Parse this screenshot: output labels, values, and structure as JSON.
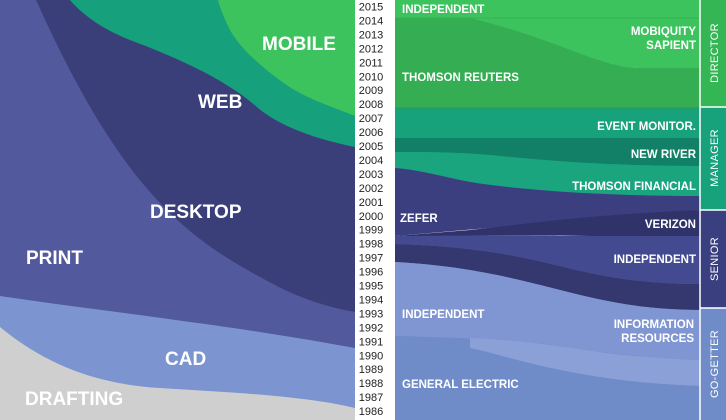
{
  "colors": {
    "mobile": "#3dc35d",
    "web": "#16a07c",
    "desktop": "#3a3f7a",
    "print": "#52599d",
    "cad": "#7c95d0",
    "drafting": "#cfcfcf",
    "director": "#35b655",
    "manager": "#17a27c",
    "senior": "#3a3f80",
    "go_getter": "#6f8bc8"
  },
  "disciplines": {
    "mobile": "MOBILE",
    "web": "WEB",
    "desktop": "DESKTOP",
    "print": "PRINT",
    "cad": "CAD",
    "drafting": "DRAFTING"
  },
  "years": [
    "2015",
    "2014",
    "2013",
    "2012",
    "2011",
    "2010",
    "2009",
    "2008",
    "2007",
    "2006",
    "2005",
    "2004",
    "2003",
    "2002",
    "2001",
    "2000",
    "1999",
    "1998",
    "1997",
    "1996",
    "1995",
    "1994",
    "1993",
    "1992",
    "1991",
    "1990",
    "1989",
    "1988",
    "1987",
    "1986"
  ],
  "employers_left": {
    "independent_top": "INDEPENDENT",
    "thomson_reuters": "THOMSON REUTERS",
    "zefer": "ZEFER",
    "independent_mid": "INDEPENDENT",
    "general_electric": "GENERAL ELECTRIC"
  },
  "employers_right": {
    "mobiquity_line1": "MOBIQUITY",
    "mobiquity_line2": "SAPIENT",
    "event_monitor": "EVENT MONITOR.",
    "new_river": "NEW RIVER",
    "thomson_financial": "THOMSON FINANCIAL",
    "verizon": "VERIZON",
    "independent": "INDEPENDENT",
    "info_line1": "INFORMATION",
    "info_line2": "RESOURCES"
  },
  "roles": {
    "director": "DIRECTOR",
    "manager": "MANAGER",
    "senior": "SENIOR",
    "go_getter": "GO-GETTER"
  }
}
